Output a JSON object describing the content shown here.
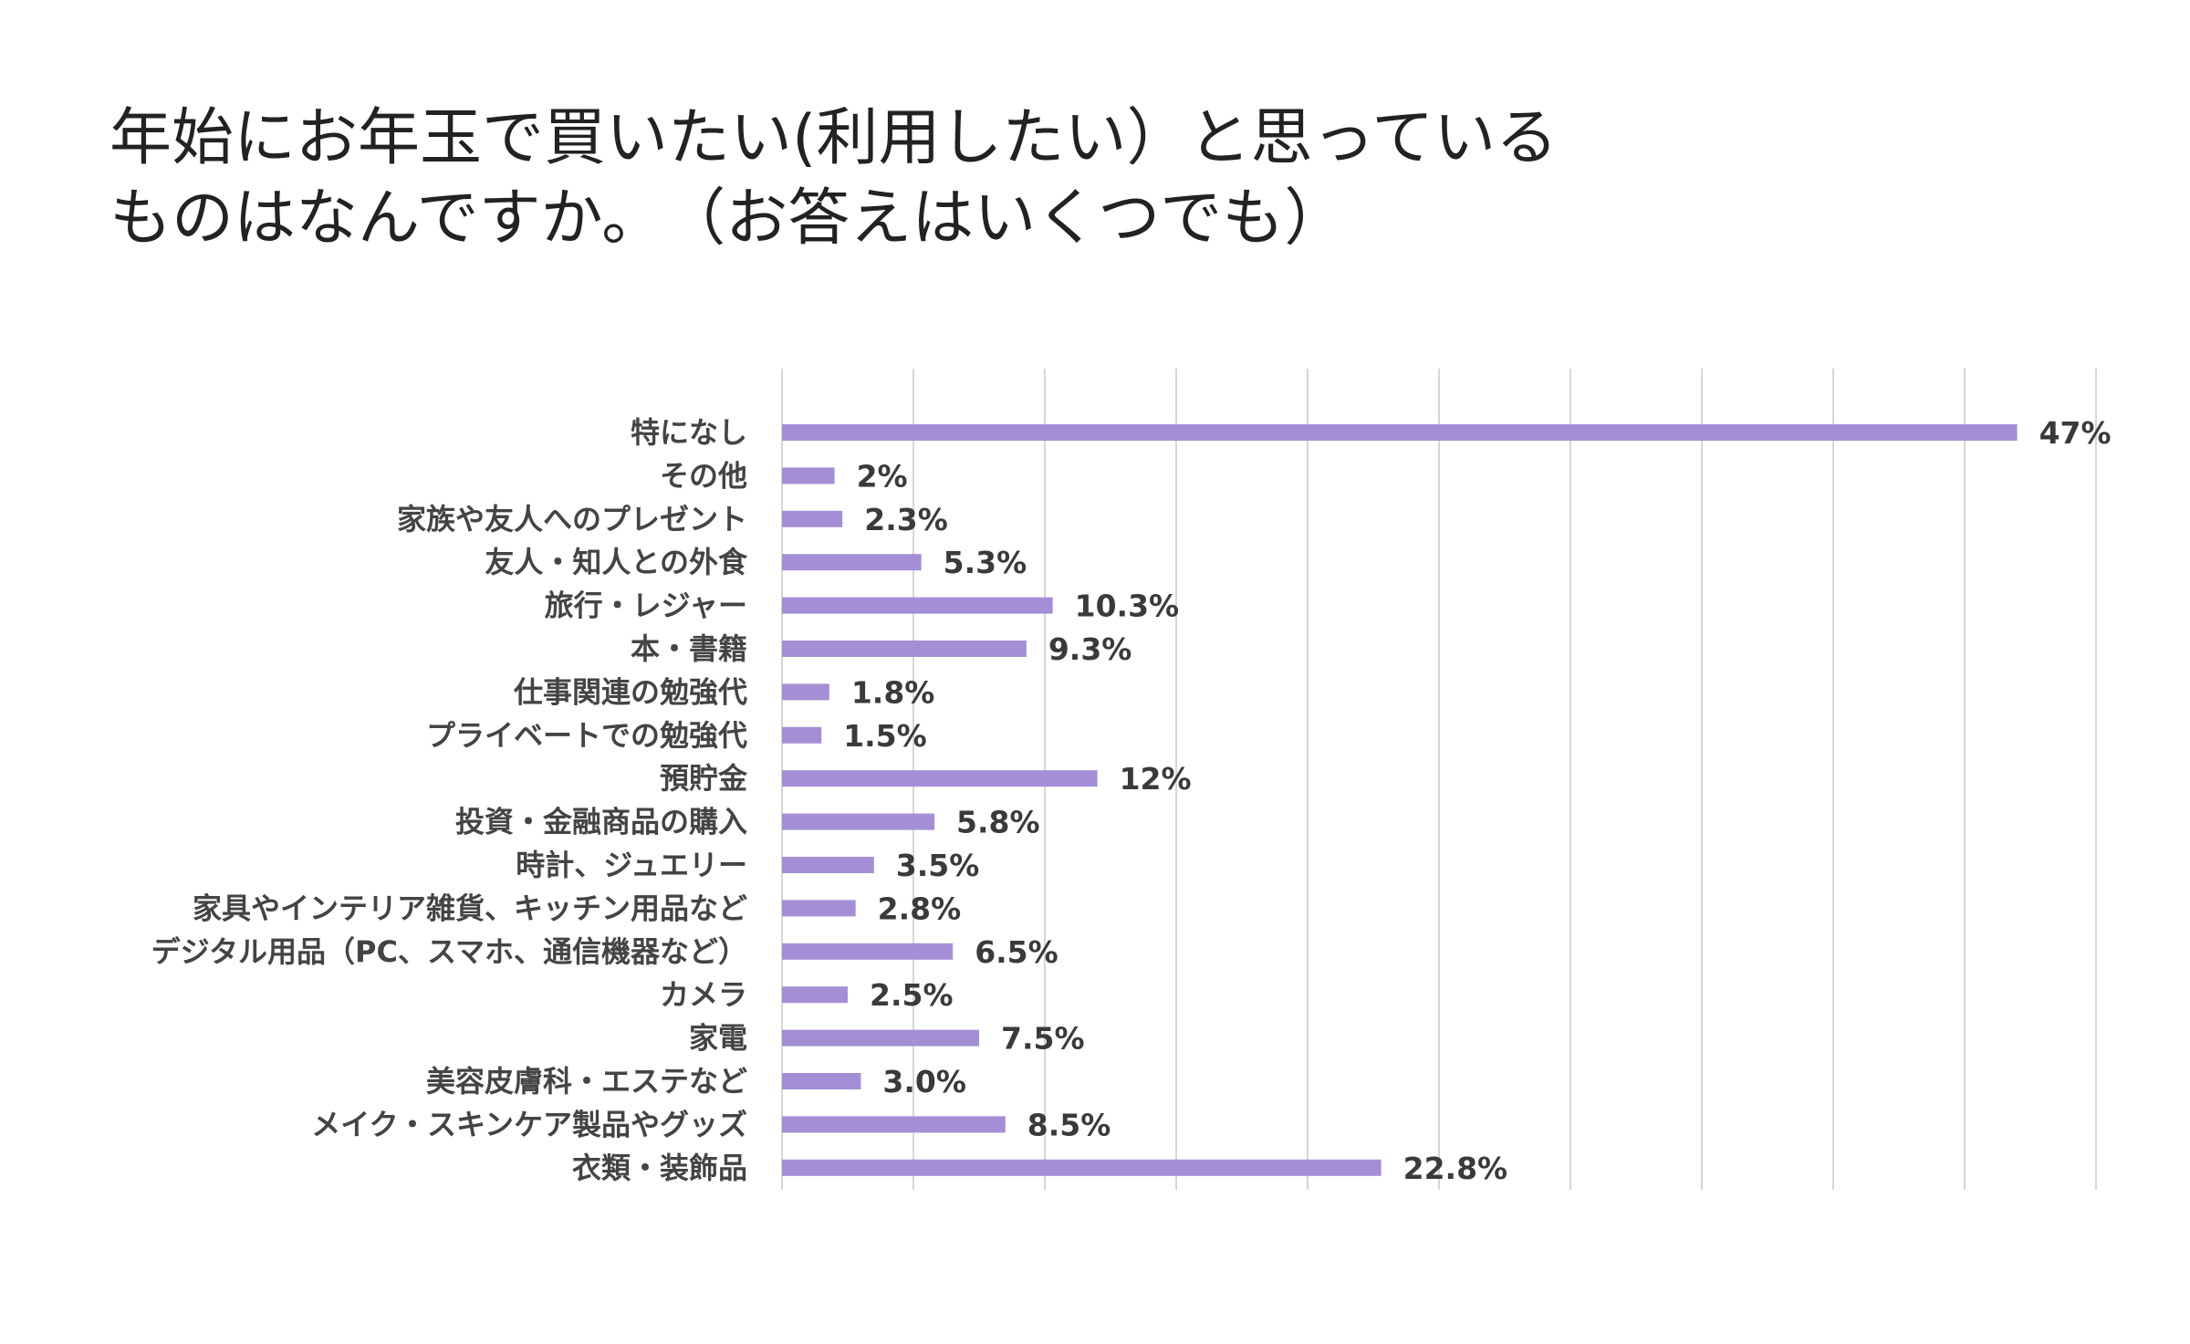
{
  "chart_data": {
    "type": "bar",
    "orientation": "horizontal",
    "title_lines": [
      "年始にお年玉で買いたい(利用したい）と思っている",
      "ものはなんですか。　（お答えはいくつでも）"
    ],
    "categories": [
      "特になし",
      "その他",
      "家族や友人へのプレゼント",
      "友人・知人との外食",
      "旅行・レジャー",
      "本・書籍",
      "仕事関連の勉強代",
      "プライベートでの勉強代",
      "預貯金",
      "投資・金融商品の購入",
      "時計、ジュエリー",
      "家具やインテリア雑貨、キッチン用品など",
      "デジタル用品（PC、スマホ、通信機器など）",
      "カメラ",
      "家電",
      "美容皮膚科・エステなど",
      "メイク・スキンケア製品やグッズ",
      "衣類・装飾品"
    ],
    "values": [
      47,
      2,
      2.3,
      5.3,
      10.3,
      9.3,
      1.8,
      1.5,
      12,
      5.8,
      3.5,
      2.8,
      6.5,
      2.5,
      7.5,
      3.0,
      8.5,
      22.8
    ],
    "value_labels": [
      "47%",
      "2%",
      "2.3%",
      "5.3%",
      "10.3%",
      "9.3%",
      "1.8%",
      "1.5%",
      "12%",
      "5.8%",
      "3.5%",
      "2.8%",
      "6.5%",
      "2.5%",
      "7.5%",
      "3.0%",
      "8.5%",
      "22.8%"
    ],
    "xlim": [
      0,
      50
    ],
    "grid_step": 5,
    "grid": true,
    "legend": "none",
    "xlabel": "",
    "ylabel": "",
    "colors": {
      "bar": "#a48fd6",
      "grid": "#d6d6d6",
      "category_text": "#444444",
      "value_text": "#3a3a3a",
      "title_text": "#222222"
    }
  }
}
